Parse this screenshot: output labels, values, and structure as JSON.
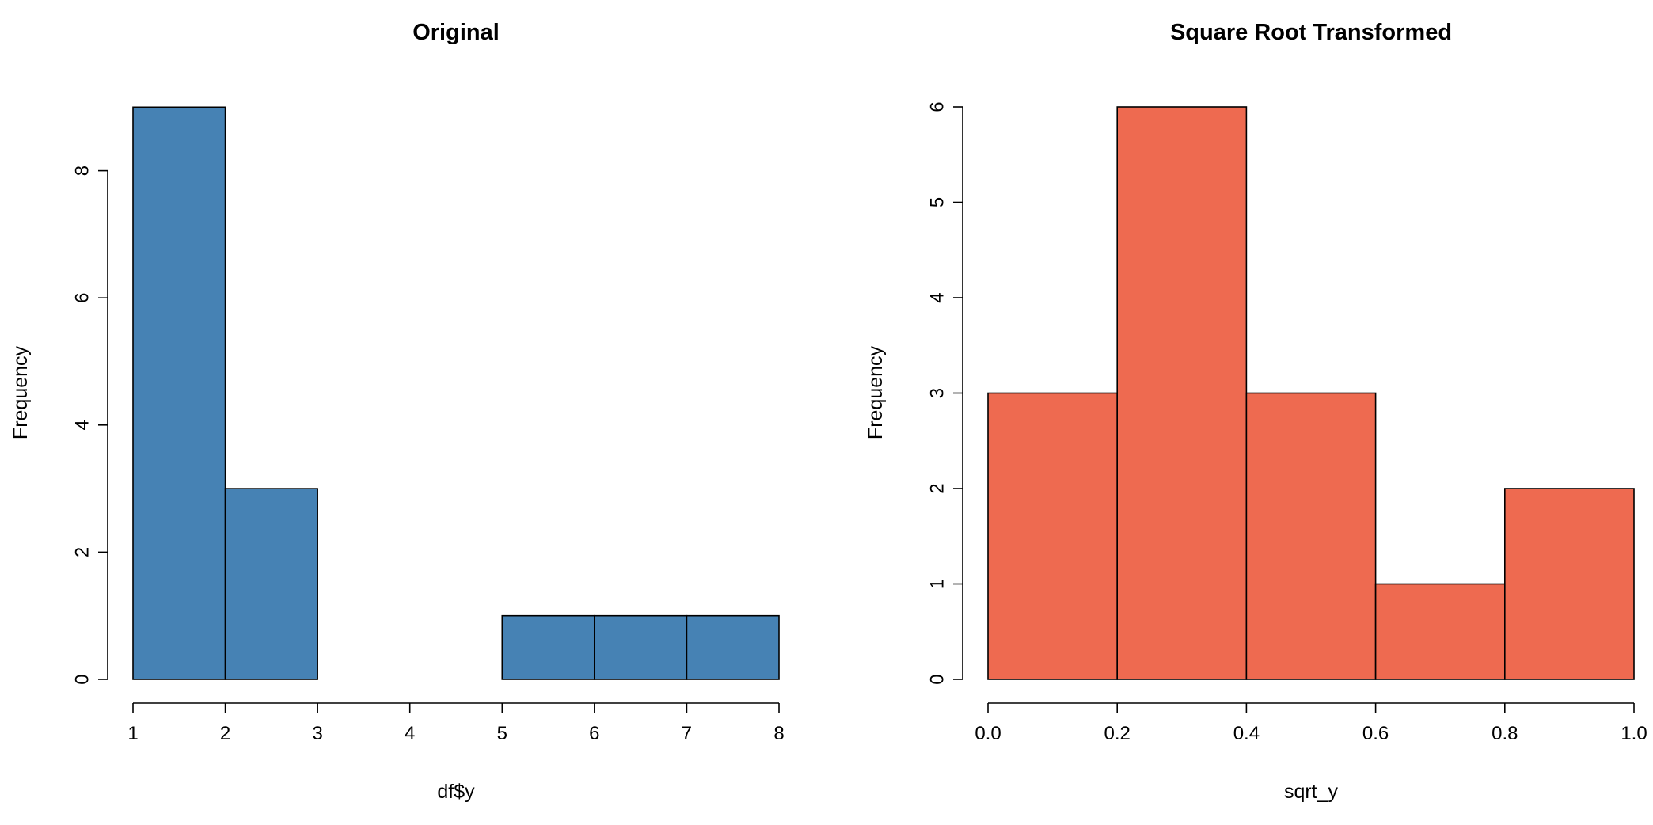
{
  "chart_data": [
    {
      "type": "histogram",
      "title": "Original",
      "xlabel": "df$y",
      "ylabel": "Frequency",
      "color": "#4682B4",
      "bins": [
        {
          "start": 1,
          "end": 2,
          "count": 9
        },
        {
          "start": 2,
          "end": 3,
          "count": 3
        },
        {
          "start": 3,
          "end": 4,
          "count": 0
        },
        {
          "start": 4,
          "end": 5,
          "count": 0
        },
        {
          "start": 5,
          "end": 6,
          "count": 1
        },
        {
          "start": 6,
          "end": 7,
          "count": 1
        },
        {
          "start": 7,
          "end": 8,
          "count": 1
        }
      ],
      "xlim": [
        1,
        8
      ],
      "ylim": [
        0,
        9
      ],
      "xticks": [
        "1",
        "2",
        "3",
        "4",
        "5",
        "6",
        "7",
        "8"
      ],
      "yticks": [
        "0",
        "2",
        "4",
        "6",
        "8"
      ],
      "grid": false
    },
    {
      "type": "histogram",
      "title": "Square Root Transformed",
      "xlabel": "sqrt_y",
      "ylabel": "Frequency",
      "color": "#EE6A50",
      "bins": [
        {
          "start": 0.0,
          "end": 0.2,
          "count": 3
        },
        {
          "start": 0.2,
          "end": 0.4,
          "count": 6
        },
        {
          "start": 0.4,
          "end": 0.6,
          "count": 3
        },
        {
          "start": 0.6,
          "end": 0.8,
          "count": 1
        },
        {
          "start": 0.8,
          "end": 1.0,
          "count": 2
        }
      ],
      "xlim": [
        0.0,
        1.0
      ],
      "ylim": [
        0,
        6
      ],
      "xticks": [
        "0.0",
        "0.2",
        "0.4",
        "0.6",
        "0.8",
        "1.0"
      ],
      "yticks": [
        "0",
        "1",
        "2",
        "3",
        "4",
        "5",
        "6"
      ],
      "grid": false
    }
  ]
}
